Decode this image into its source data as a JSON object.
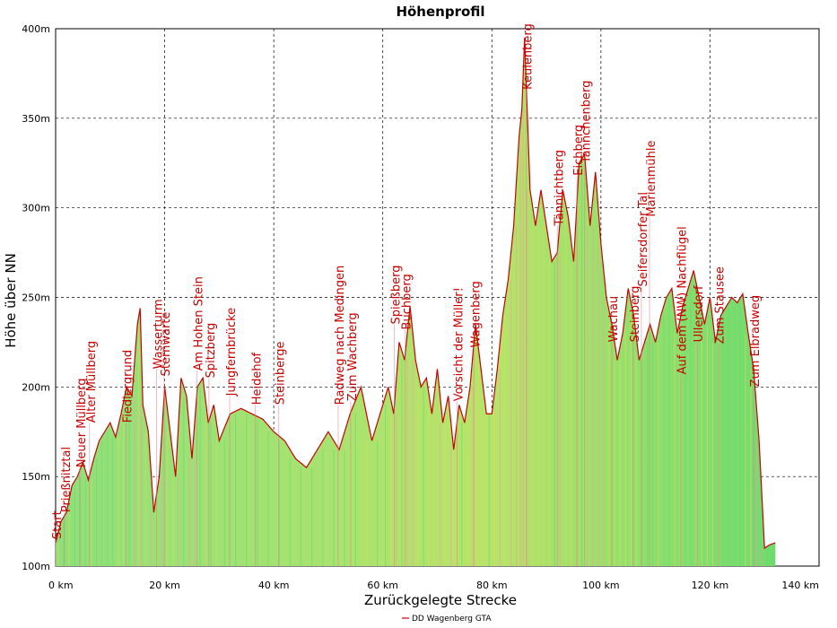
{
  "chart_data": {
    "type": "area",
    "title": "Höhenprofil",
    "xlabel": "Zurückgelegte Strecke",
    "ylabel": "Höhe über NN",
    "xlim": [
      0,
      140
    ],
    "ylim": [
      100,
      400
    ],
    "x_ticks": [
      0,
      20,
      40,
      60,
      80,
      100,
      120,
      140
    ],
    "x_tick_labels": [
      "0 km",
      "20 km",
      "40 km",
      "60 km",
      "80 km",
      "100 km",
      "120 km",
      "140 km"
    ],
    "y_ticks": [
      100,
      150,
      200,
      250,
      300,
      350,
      400
    ],
    "y_tick_labels": [
      "100m",
      "150m",
      "200m",
      "250m",
      "300m",
      "350m",
      "400m"
    ],
    "grid": true,
    "legend_position": "bottom-center",
    "line_color": "#c80000",
    "fill_colors": [
      "#66dd66",
      "#dddd55",
      "#ff9999"
    ],
    "series": [
      {
        "name": "DD Wagenberg GTA",
        "x": [
          0,
          1,
          2,
          3,
          4,
          5,
          6,
          7,
          8,
          9,
          10,
          11,
          12,
          13,
          14,
          15,
          15.5,
          16,
          17,
          18,
          19,
          20,
          21,
          22,
          23,
          24,
          25,
          26,
          27,
          28,
          29,
          30,
          32,
          34,
          36,
          38,
          40,
          42,
          44,
          46,
          48,
          50,
          52,
          54,
          56,
          58,
          60,
          61,
          62,
          63,
          64,
          65,
          66,
          67,
          68,
          69,
          70,
          71,
          72,
          73,
          74,
          75,
          76,
          77,
          78,
          79,
          80,
          81,
          82,
          83,
          84,
          85,
          85.5,
          86,
          87,
          88,
          89,
          90,
          91,
          92,
          93,
          94,
          95,
          96,
          97,
          98,
          99,
          100,
          101,
          102,
          103,
          104,
          105,
          106,
          107,
          108,
          109,
          110,
          111,
          112,
          113,
          114,
          115,
          116,
          117,
          118,
          119,
          120,
          121,
          122,
          123,
          124,
          125,
          126,
          127,
          128,
          129,
          130,
          131,
          132
        ],
        "y": [
          113,
          125,
          130,
          145,
          150,
          158,
          148,
          160,
          170,
          175,
          180,
          172,
          185,
          200,
          195,
          235,
          244,
          190,
          175,
          130,
          150,
          200,
          175,
          150,
          205,
          195,
          160,
          200,
          205,
          180,
          190,
          170,
          185,
          188,
          185,
          182,
          175,
          170,
          160,
          155,
          165,
          175,
          165,
          185,
          200,
          170,
          190,
          200,
          185,
          225,
          215,
          245,
          215,
          200,
          205,
          185,
          210,
          180,
          195,
          165,
          190,
          180,
          200,
          235,
          210,
          185,
          185,
          210,
          240,
          260,
          290,
          340,
          355,
          395,
          310,
          290,
          310,
          290,
          270,
          275,
          310,
          295,
          270,
          325,
          330,
          290,
          320,
          280,
          250,
          235,
          215,
          230,
          255,
          240,
          215,
          225,
          235,
          225,
          240,
          250,
          255,
          230,
          245,
          255,
          265,
          250,
          235,
          250,
          225,
          240,
          245,
          250,
          247,
          252,
          230,
          210,
          170,
          110,
          112,
          113
        ],
        "values_are_approximate": true
      }
    ],
    "waypoints": [
      {
        "km": 1.0,
        "elev": 115,
        "label": "Start"
      },
      {
        "km": 2.6,
        "elev": 130,
        "label": "Prießnitztal"
      },
      {
        "km": 5.4,
        "elev": 155,
        "label": "Neuer Müllberg"
      },
      {
        "km": 7.2,
        "elev": 180,
        "label": "Alter Müllberg"
      },
      {
        "km": 13.9,
        "elev": 180,
        "label": "Fiedlergrund"
      },
      {
        "km": 19.5,
        "elev": 210,
        "label": "Wasserturm"
      },
      {
        "km": 20.9,
        "elev": 206,
        "label": "Sternwarte"
      },
      {
        "km": 26.9,
        "elev": 209,
        "label": "Am Hohen Stein"
      },
      {
        "km": 29.1,
        "elev": 205,
        "label": "Spitzberg"
      },
      {
        "km": 32.9,
        "elev": 195,
        "label": "Jungfernbrücke"
      },
      {
        "km": 37.6,
        "elev": 190,
        "label": "Heidehof"
      },
      {
        "km": 41.9,
        "elev": 190,
        "label": "Steinberge"
      },
      {
        "km": 52.8,
        "elev": 190,
        "label": "Radweg nach Medingen"
      },
      {
        "km": 55.1,
        "elev": 192,
        "label": "Zum Wachberg"
      },
      {
        "km": 63.1,
        "elev": 235,
        "label": "Spießberg"
      },
      {
        "km": 65.1,
        "elev": 232,
        "label": "Buchberg"
      },
      {
        "km": 74.6,
        "elev": 192,
        "label": "Vorsicht der Müller!"
      },
      {
        "km": 77.7,
        "elev": 222,
        "label": "Wagenberg"
      },
      {
        "km": 87.3,
        "elev": 366,
        "label": "Keulenberg"
      },
      {
        "km": 93.0,
        "elev": 290,
        "label": "Tännichtberg"
      },
      {
        "km": 96.6,
        "elev": 318,
        "label": "Eichberg"
      },
      {
        "km": 98.0,
        "elev": 325,
        "label": "Tännchenberg"
      },
      {
        "km": 103.0,
        "elev": 225,
        "label": "Wachau"
      },
      {
        "km": 106.9,
        "elev": 225,
        "label": "Steinberg"
      },
      {
        "km": 108.4,
        "elev": 256,
        "label": "Seifersdorfer Tal"
      },
      {
        "km": 109.9,
        "elev": 295,
        "label": "Marienmühle"
      },
      {
        "km": 115.6,
        "elev": 207,
        "label": "Auf dem (NW) Nachflügel"
      },
      {
        "km": 118.6,
        "elev": 225,
        "label": "Ullersdorf"
      },
      {
        "km": 122.5,
        "elev": 224,
        "label": "Zum Stausee"
      },
      {
        "km": 129.0,
        "elev": 200,
        "label": "Zum Elbradweg"
      }
    ]
  }
}
